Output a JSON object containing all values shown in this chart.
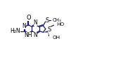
{
  "bg_color": "#ffffff",
  "line_color": "#1a1a6e",
  "bond_width": 0.9,
  "font_size": 5.5,
  "figsize": [
    1.82,
    0.89
  ],
  "dpi": 100,
  "xlim": [
    0,
    18
  ],
  "ylim": [
    0,
    9
  ]
}
